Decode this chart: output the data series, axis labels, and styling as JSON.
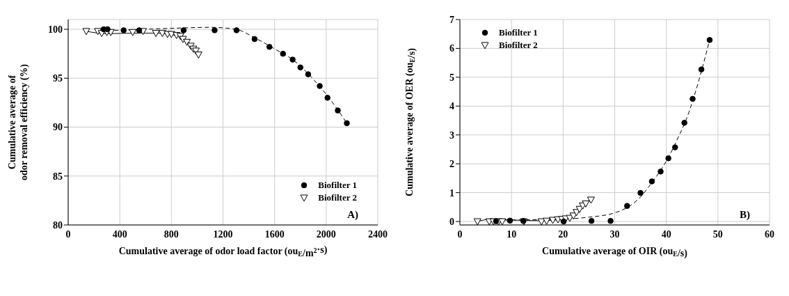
{
  "chart_data": [
    {
      "type": "scatter",
      "xlabel": "Cumulative average of odor load factor (ou$_{E}$/m$^{2}$·s)",
      "ylabel": "Cumulative average of\nodor removal efficiency (%)",
      "annotations": [
        "A)"
      ],
      "xlim": [
        0,
        2400
      ],
      "xticks": [
        0,
        400,
        800,
        1200,
        1600,
        2000,
        2400
      ],
      "ylim": [
        80,
        101
      ],
      "yticks": [
        80,
        85,
        90,
        95,
        100
      ],
      "grid": true,
      "legend": "bottom right",
      "series": [
        {
          "name": "Biofilter 1",
          "color": "#000000",
          "marker": "circle",
          "x": [
            275,
            305,
            430,
            550,
            895,
            1135,
            1305,
            1445,
            1560,
            1665,
            1740,
            1800,
            1860,
            1950,
            2010,
            2090,
            2160
          ],
          "values": [
            100.0,
            100.0,
            99.9,
            99.9,
            99.9,
            99.9,
            99.9,
            99.0,
            98.2,
            97.5,
            96.9,
            96.1,
            95.4,
            94.2,
            93.0,
            91.7,
            90.4
          ]
        },
        {
          "name": "Biofilter 2",
          "color": "#000000",
          "marker": "triangle",
          "x": [
            140,
            230,
            260,
            300,
            330,
            500,
            580,
            680,
            730,
            770,
            800,
            840,
            870,
            890,
            920,
            950,
            970,
            990,
            1010
          ],
          "values": [
            99.8,
            99.8,
            99.6,
            99.7,
            99.7,
            99.7,
            99.8,
            99.6,
            99.6,
            99.5,
            99.5,
            99.4,
            99.3,
            99.0,
            98.7,
            98.3,
            98.0,
            97.8,
            97.4
          ]
        },
        {
          "type": "line",
          "color": "#000000",
          "marker": "none",
          "line_style": "dashed",
          "x": [
            250,
            500,
            800,
            1100,
            1300,
            1450,
            1600,
            1750,
            1900,
            2050,
            2160
          ],
          "values": [
            99.85,
            99.95,
            100.1,
            100.2,
            100.0,
            99.1,
            98.0,
            96.8,
            94.9,
            92.5,
            90.4
          ]
        },
        {
          "type": "line",
          "color": "#000000",
          "marker": "none",
          "line_style": "solid",
          "x": [
            140,
            300,
            500,
            700,
            850,
            920,
            1010
          ],
          "values": [
            99.8,
            99.55,
            99.6,
            99.6,
            99.3,
            98.8,
            97.5
          ]
        }
      ]
    },
    {
      "type": "scatter",
      "xlabel": "Cumulative average of OIR (ou$_{E}$/s)",
      "ylabel": "Cumulative average of OER (ou$_{E}$/s)",
      "annotations": [
        "B)"
      ],
      "xlim": [
        0,
        60
      ],
      "xticks": [
        0,
        10,
        20,
        30,
        40,
        50,
        60
      ],
      "ylim": [
        -0.12,
        7
      ],
      "yticks": [
        0,
        1,
        2,
        3,
        4,
        5,
        6,
        7
      ],
      "grid": true,
      "legend": "top left",
      "series": [
        {
          "name": "Biofilter 1",
          "color": "#000000",
          "marker": "circle",
          "x": [
            7.0,
            9.7,
            12.3,
            20.1,
            25.5,
            29.2,
            32.4,
            35.0,
            37.2,
            38.9,
            40.4,
            41.7,
            43.5,
            45.1,
            46.8,
            48.4
          ],
          "values": [
            0.01,
            0.03,
            0.02,
            0.0,
            0.02,
            0.02,
            0.54,
            0.99,
            1.39,
            1.73,
            2.19,
            2.57,
            3.42,
            4.25,
            5.27,
            6.29
          ]
        },
        {
          "name": "Biofilter 2",
          "color": "#000000",
          "marker": "triangle",
          "x": [
            3.4,
            5.7,
            6.5,
            7.5,
            8.2,
            12.4,
            15.8,
            16.8,
            18.0,
            19.0,
            19.8,
            20.5,
            21.3,
            22.0,
            22.6,
            23.2,
            23.8,
            24.4,
            25.4
          ],
          "values": [
            0.0,
            0.0,
            0.0,
            0.0,
            0.0,
            0.0,
            0.0,
            0.02,
            0.05,
            0.07,
            0.08,
            0.1,
            0.12,
            0.2,
            0.32,
            0.43,
            0.55,
            0.62,
            0.75
          ]
        },
        {
          "type": "line",
          "color": "#000000",
          "marker": "none",
          "line_style": "dashed",
          "x": [
            6,
            15,
            20,
            25,
            30,
            33,
            35,
            37,
            39,
            40.5,
            42,
            44,
            46,
            48.4
          ],
          "values": [
            0.05,
            0.06,
            0.08,
            0.15,
            0.3,
            0.55,
            0.85,
            1.3,
            1.8,
            2.25,
            2.8,
            3.6,
            4.7,
            6.3
          ]
        },
        {
          "type": "line",
          "color": "#000000",
          "marker": "none",
          "line_style": "solid",
          "x": [
            3.4,
            6,
            10,
            15,
            20,
            22,
            23.5,
            25.4
          ],
          "values": [
            0.0,
            0.08,
            0.05,
            0.03,
            0.08,
            0.2,
            0.45,
            0.8
          ]
        }
      ]
    }
  ]
}
